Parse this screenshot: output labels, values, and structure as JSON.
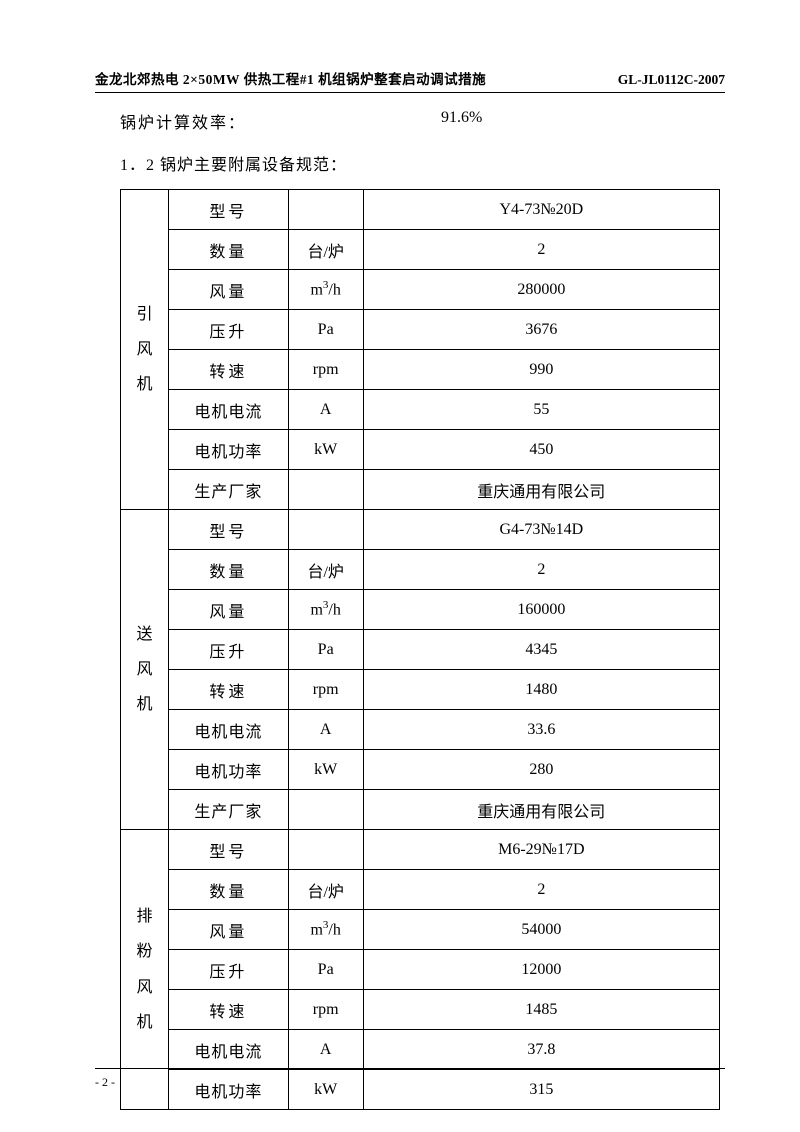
{
  "header": {
    "left": "金龙北郊热电 2×50MW 供热工程#1 机组锅炉整套启动调试措施",
    "right": "GL-JL0112C-2007"
  },
  "efficiency": {
    "label": "锅炉计算效率：",
    "value": "91.6%"
  },
  "section_title": "1．2 锅炉主要附属设备规范：",
  "groups": [
    {
      "name": "引\n风\n机",
      "rows": [
        {
          "param": "型号",
          "unit": "",
          "value": "Y4-73№20D",
          "param_class": "col-param"
        },
        {
          "param": "数量",
          "unit": "台/炉",
          "value": "2",
          "param_class": "col-param"
        },
        {
          "param": "风量",
          "unit": "m³/h",
          "value": "280000",
          "param_class": "col-param"
        },
        {
          "param": "压升",
          "unit": "Pa",
          "value": "3676",
          "param_class": "col-param"
        },
        {
          "param": "转速",
          "unit": "rpm",
          "value": "990",
          "param_class": "col-param"
        },
        {
          "param": "电机电流",
          "unit": "A",
          "value": "55",
          "param_class": "col-param-long"
        },
        {
          "param": "电机功率",
          "unit": "kW",
          "value": "450",
          "param_class": "col-param-long"
        },
        {
          "param": "生产厂家",
          "unit": "",
          "value": "重庆通用有限公司",
          "param_class": "col-param-long"
        }
      ]
    },
    {
      "name": "送\n风\n机",
      "rows": [
        {
          "param": "型号",
          "unit": "",
          "value": "G4-73№14D",
          "param_class": "col-param"
        },
        {
          "param": "数量",
          "unit": "台/炉",
          "value": "2",
          "param_class": "col-param"
        },
        {
          "param": "风量",
          "unit": "m³/h",
          "value": "160000",
          "param_class": "col-param"
        },
        {
          "param": "压升",
          "unit": "Pa",
          "value": "4345",
          "param_class": "col-param"
        },
        {
          "param": "转速",
          "unit": "rpm",
          "value": "1480",
          "param_class": "col-param"
        },
        {
          "param": "电机电流",
          "unit": "A",
          "value": "33.6",
          "param_class": "col-param-long"
        },
        {
          "param": "电机功率",
          "unit": "kW",
          "value": "280",
          "param_class": "col-param-long"
        },
        {
          "param": "生产厂家",
          "unit": "",
          "value": "重庆通用有限公司",
          "param_class": "col-param-long"
        }
      ]
    },
    {
      "name": "排\n粉\n风\n机",
      "rows": [
        {
          "param": "型号",
          "unit": "",
          "value": "M6-29№17D",
          "param_class": "col-param"
        },
        {
          "param": "数量",
          "unit": "台/炉",
          "value": "2",
          "param_class": "col-param"
        },
        {
          "param": "风量",
          "unit": "m³/h",
          "value": "54000",
          "param_class": "col-param"
        },
        {
          "param": "压升",
          "unit": "Pa",
          "value": "12000",
          "param_class": "col-param"
        },
        {
          "param": "转速",
          "unit": "rpm",
          "value": "1485",
          "param_class": "col-param"
        },
        {
          "param": "电机电流",
          "unit": "A",
          "value": "37.8",
          "param_class": "col-param-long"
        },
        {
          "param": "电机功率",
          "unit": "kW",
          "value": "315",
          "param_class": "col-param-long"
        }
      ]
    }
  ],
  "footer": {
    "page": "- 2 -"
  }
}
